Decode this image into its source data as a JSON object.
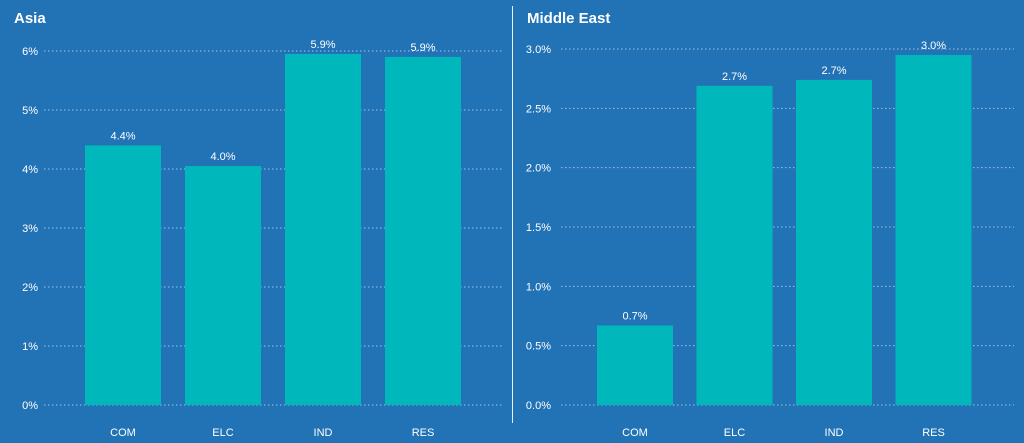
{
  "chart_data": [
    {
      "type": "bar",
      "title": "Asia",
      "categories": [
        "COM",
        "ELC",
        "IND",
        "RES"
      ],
      "values": [
        4.4,
        4.05,
        5.95,
        5.9
      ],
      "data_labels": [
        "4.4%",
        "4.0%",
        "5.9%",
        "5.9%"
      ],
      "yticks": [
        0,
        1,
        2,
        3,
        4,
        5,
        6
      ],
      "ytick_labels": [
        "0%",
        "1%",
        "2%",
        "3%",
        "4%",
        "5%",
        "6%"
      ],
      "ylim": [
        0,
        6
      ],
      "grid": true,
      "bar_color": "#00b8bb"
    },
    {
      "type": "bar",
      "title": "Middle East",
      "categories": [
        "COM",
        "ELC",
        "IND",
        "RES"
      ],
      "values": [
        0.67,
        2.69,
        2.74,
        2.95
      ],
      "data_labels": [
        "0.7%",
        "2.7%",
        "2.7%",
        "3.0%"
      ],
      "yticks": [
        0,
        0.5,
        1.0,
        1.5,
        2.0,
        2.5,
        3.0
      ],
      "ytick_labels": [
        "0.0%",
        "0.5%",
        "1.0%",
        "1.5%",
        "2.0%",
        "2.5%",
        "3.0%"
      ],
      "ylim": [
        0,
        3
      ],
      "grid": true,
      "bar_color": "#00b8bb"
    }
  ]
}
